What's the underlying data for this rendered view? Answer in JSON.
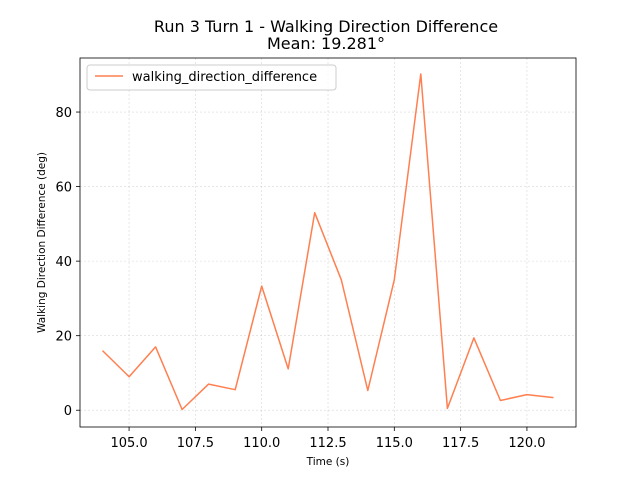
{
  "chart_data": {
    "type": "line",
    "title_line1": "Run 3 Turn 1 - Walking Direction Difference",
    "title_line2": "Mean: 19.281°",
    "xlabel": "Time (s)",
    "ylabel": "Walking Direction Difference (deg)",
    "xlim": [
      103.15,
      121.85
    ],
    "ylim": [
      -4.5,
      94.5
    ],
    "xticks": [
      105.0,
      107.5,
      110.0,
      112.5,
      115.0,
      117.5,
      120.0
    ],
    "xtick_labels": [
      "105.0",
      "107.5",
      "110.0",
      "112.5",
      "115.0",
      "117.5",
      "120.0"
    ],
    "yticks": [
      0,
      20,
      40,
      60,
      80
    ],
    "ytick_labels": [
      "0",
      "20",
      "40",
      "60",
      "80"
    ],
    "grid": true,
    "legend_position": "upper-left",
    "series": [
      {
        "name": "walking_direction_difference",
        "color": "#ff7f50",
        "x": [
          104,
          105,
          106,
          107,
          108,
          109,
          110,
          111,
          112,
          113,
          114,
          115,
          116,
          117,
          118,
          119,
          120,
          121
        ],
        "values": [
          16.0,
          9.0,
          17.0,
          0.2,
          7.0,
          5.5,
          33.3,
          11.1,
          53.0,
          35.0,
          5.3,
          35.0,
          90.2,
          0.5,
          19.4,
          2.6,
          4.2,
          3.4
        ]
      }
    ]
  }
}
